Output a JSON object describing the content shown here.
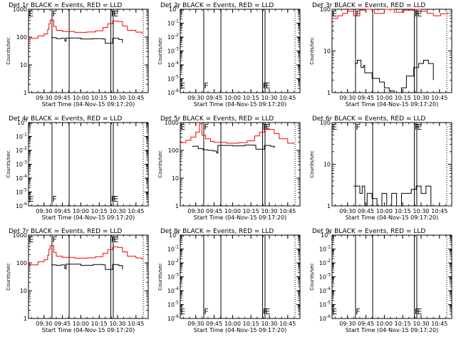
{
  "chart_data": [
    {
      "type": "line",
      "title": "Det 1r  BLACK = Events, RED = LLD",
      "xlabel": "Start Time (04-Nov-15 09:17:20)",
      "ylabel": "Counts/sec",
      "y_scale": "log",
      "ylim": [
        1,
        1000
      ],
      "y_ticks": [
        "1",
        "10",
        "100",
        "1000"
      ],
      "x_ticks": [
        "09:30",
        "09:45",
        "10:00",
        "10:15",
        "10:30",
        "10:45"
      ],
      "markers": [
        "E",
        "F",
        "F",
        "E"
      ],
      "series": [
        {
          "color": "#000000",
          "x": [
            "09:36",
            "09:40",
            "09:44",
            "09:47",
            "09:48",
            "10:00",
            "10:10",
            "10:18",
            "10:20",
            "10:26",
            "10:31",
            "10:34"
          ],
          "y": [
            95,
            88,
            90,
            72,
            92,
            85,
            88,
            85,
            60,
            90,
            82,
            62
          ]
        },
        {
          "color": "#ff0000",
          "x": [
            "09:17",
            "09:25",
            "09:30",
            "09:33",
            "09:34",
            "09:35",
            "09:38",
            "09:40",
            "09:45",
            "09:55",
            "10:05",
            "10:12",
            "10:18",
            "10:22",
            "10:26",
            "10:30",
            "10:34",
            "10:38",
            "10:45",
            "10:50"
          ],
          "y": [
            90,
            110,
            130,
            190,
            300,
            410,
            240,
            175,
            158,
            148,
            152,
            168,
            220,
            300,
            380,
            360,
            250,
            175,
            150,
            130
          ]
        }
      ]
    },
    {
      "type": "line",
      "title": "Det 2r  BLACK = Events, RED = LLD",
      "xlabel": "Start Time (04-Nov-15 09:17:20)",
      "ylabel": "Counts/sec",
      "y_scale": "log",
      "ylim": [
        1e-06,
        1
      ],
      "y_ticks": [
        "10^-6",
        "10^-5",
        "10^-4",
        "10^-3",
        "10^-2",
        "10^-1",
        "10^0"
      ],
      "x_ticks": [
        "09:30",
        "09:45",
        "10:00",
        "10:15",
        "10:30",
        "10:45"
      ],
      "markers": [
        "E",
        "F",
        "F",
        "E"
      ],
      "series": []
    },
    {
      "type": "line",
      "title": "Det 3r  BLACK = Events, RED = LLD",
      "xlabel": "Start Time (04-Nov-15 09:17:20)",
      "ylabel": "Counts/sec",
      "y_scale": "log",
      "ylim": [
        1,
        100
      ],
      "y_ticks": [
        "1",
        "10",
        "100"
      ],
      "x_ticks": [
        "09:30",
        "09:45",
        "10:00",
        "10:15",
        "10:30",
        "10:45"
      ],
      "markers": [
        "E",
        "F",
        "F",
        "E"
      ],
      "series": [
        {
          "color": "#000000",
          "x": [
            "09:36",
            "09:38",
            "09:41",
            "09:43",
            "09:44",
            "09:50",
            "09:56",
            "10:00",
            "10:04",
            "10:08",
            "10:14",
            "10:18",
            "10:24",
            "10:28",
            "10:32",
            "10:36",
            "10:40"
          ],
          "y": [
            5,
            6,
            4,
            4.5,
            3,
            2.2,
            1.8,
            1.3,
            1.1,
            1.0,
            1.3,
            2.5,
            4,
            5,
            6,
            5,
            2
          ]
        },
        {
          "color": "#ff0000",
          "x": [
            "09:17",
            "09:22",
            "09:26",
            "09:30",
            "09:35",
            "09:40",
            "09:45",
            "09:52",
            "10:00",
            "10:08",
            "10:16",
            "10:24",
            "10:30",
            "10:35",
            "10:40",
            "10:46",
            "10:52"
          ],
          "y": [
            60,
            70,
            80,
            90,
            70,
            95,
            100,
            80,
            100,
            85,
            95,
            100,
            90,
            80,
            70,
            78,
            85
          ]
        }
      ]
    },
    {
      "type": "line",
      "title": "Det 4r  BLACK = Events, RED = LLD",
      "xlabel": "Start Time (04-Nov-15 09:17:20)",
      "ylabel": "Counts/sec",
      "y_scale": "log",
      "ylim": [
        1e-06,
        1
      ],
      "y_ticks": [
        "10^-6",
        "10^-5",
        "10^-4",
        "10^-3",
        "10^-2",
        "10^-1",
        "10^0"
      ],
      "x_ticks": [
        "09:30",
        "09:45",
        "10:00",
        "10:15",
        "10:30",
        "10:45"
      ],
      "markers": [
        "E",
        "F",
        "F",
        "E"
      ],
      "series": []
    },
    {
      "type": "line",
      "title": "Det 5r  BLACK = Events, RED = LLD",
      "xlabel": "Start Time (04-Nov-15 09:17:20)",
      "ylabel": "Counts/sec",
      "y_scale": "log",
      "ylim": [
        1,
        1000
      ],
      "y_ticks": [
        "1",
        "10",
        "100",
        "1000"
      ],
      "x_ticks": [
        "09:30",
        "09:45",
        "10:00",
        "10:15",
        "10:30",
        "10:45"
      ],
      "markers": [
        "E",
        "F",
        "F",
        "E"
      ],
      "series": [
        {
          "color": "#000000",
          "x": [
            "09:27",
            "09:32",
            "09:36",
            "09:40",
            "09:44",
            "09:47",
            "09:48",
            "10:00",
            "10:10",
            "10:18",
            "10:19",
            "10:26",
            "10:31",
            "10:34"
          ],
          "y": [
            140,
            115,
            105,
            100,
            95,
            80,
            150,
            145,
            155,
            150,
            110,
            150,
            140,
            120
          ]
        },
        {
          "color": "#ff0000",
          "x": [
            "09:17",
            "09:22",
            "09:26",
            "09:30",
            "09:33",
            "09:35",
            "09:38",
            "09:42",
            "09:45",
            "09:55",
            "10:05",
            "10:12",
            "10:18",
            "10:22",
            "10:26",
            "10:30",
            "10:34",
            "10:38",
            "10:45",
            "10:50"
          ],
          "y": [
            190,
            230,
            300,
            450,
            900,
            350,
            260,
            210,
            195,
            180,
            190,
            220,
            330,
            450,
            600,
            560,
            400,
            260,
            180,
            170
          ]
        }
      ]
    },
    {
      "type": "line",
      "title": "Det 6r  BLACK = Events, RED = LLD",
      "xlabel": "Start Time (04-Nov-15 09:17:20)",
      "ylabel": "Counts/sec",
      "y_scale": "log",
      "ylim": [
        1,
        100
      ],
      "y_ticks": [
        "1",
        "10",
        "100"
      ],
      "x_ticks": [
        "09:30",
        "09:45",
        "10:00",
        "10:15",
        "10:30",
        "10:45"
      ],
      "markers": [
        "E",
        "F",
        "F",
        "E"
      ],
      "series": [
        {
          "color": "#000000",
          "x": [
            "09:35",
            "09:38",
            "09:40",
            "09:42",
            "09:44",
            "09:46",
            "09:50",
            "09:54",
            "09:58",
            "10:02",
            "10:06",
            "10:10",
            "10:14",
            "10:18",
            "10:22",
            "10:26",
            "10:30",
            "10:34",
            "10:38"
          ],
          "y": [
            3,
            3,
            2,
            3,
            1,
            2,
            1.5,
            1,
            2,
            1,
            2,
            1,
            2,
            2,
            2.5,
            3,
            2,
            3,
            1
          ]
        }
      ]
    },
    {
      "type": "line",
      "title": "Det 7r  BLACK = Events, RED = LLD",
      "xlabel": "Start Time (04-Nov-15 09:17:20)",
      "ylabel": "Counts/sec",
      "y_scale": "log",
      "ylim": [
        1,
        1000
      ],
      "y_ticks": [
        "1",
        "10",
        "100",
        "1000"
      ],
      "x_ticks": [
        "09:30",
        "09:45",
        "10:00",
        "10:15",
        "10:30",
        "10:45"
      ],
      "markers": [
        "E",
        "F",
        "F",
        "E"
      ],
      "series": [
        {
          "color": "#000000",
          "x": [
            "09:36",
            "09:40",
            "09:44",
            "09:47",
            "09:48",
            "10:00",
            "10:10",
            "10:18",
            "10:20",
            "10:26",
            "10:31",
            "10:34"
          ],
          "y": [
            85,
            82,
            85,
            62,
            90,
            82,
            88,
            85,
            58,
            88,
            80,
            58
          ]
        },
        {
          "color": "#ff0000",
          "x": [
            "09:17",
            "09:25",
            "09:30",
            "09:33",
            "09:34",
            "09:35",
            "09:38",
            "09:40",
            "09:45",
            "09:55",
            "10:05",
            "10:12",
            "10:18",
            "10:22",
            "10:26",
            "10:30",
            "10:34",
            "10:38",
            "10:45",
            "10:50"
          ],
          "y": [
            85,
            110,
            130,
            190,
            310,
            420,
            240,
            175,
            158,
            148,
            152,
            168,
            220,
            300,
            380,
            360,
            250,
            175,
            150,
            130
          ]
        }
      ]
    },
    {
      "type": "line",
      "title": "Det 8r  BLACK = Events, RED = LLD",
      "xlabel": "Start Time (04-Nov-15 09:17:20)",
      "ylabel": "Counts/sec",
      "y_scale": "log",
      "ylim": [
        1e-06,
        1
      ],
      "y_ticks": [
        "10^-6",
        "10^-5",
        "10^-4",
        "10^-3",
        "10^-2",
        "10^-1",
        "10^0"
      ],
      "x_ticks": [
        "09:30",
        "09:45",
        "10:00",
        "10:15",
        "10:30",
        "10:45"
      ],
      "markers": [
        "E",
        "F",
        "F",
        "E"
      ],
      "series": []
    },
    {
      "type": "line",
      "title": "Det 9r  BLACK = Events, RED = LLD",
      "xlabel": "Start Time (04-Nov-15 09:17:20)",
      "ylabel": "Counts/sec",
      "y_scale": "log",
      "ylim": [
        1e-06,
        1
      ],
      "y_ticks": [
        "10^-6",
        "10^-5",
        "10^-4",
        "10^-3",
        "10^-2",
        "10^-1",
        "10^0"
      ],
      "x_ticks": [
        "09:30",
        "09:45",
        "10:00",
        "10:15",
        "10:30",
        "10:45"
      ],
      "markers": [
        "E",
        "F",
        "F",
        "E"
      ],
      "series": []
    }
  ]
}
